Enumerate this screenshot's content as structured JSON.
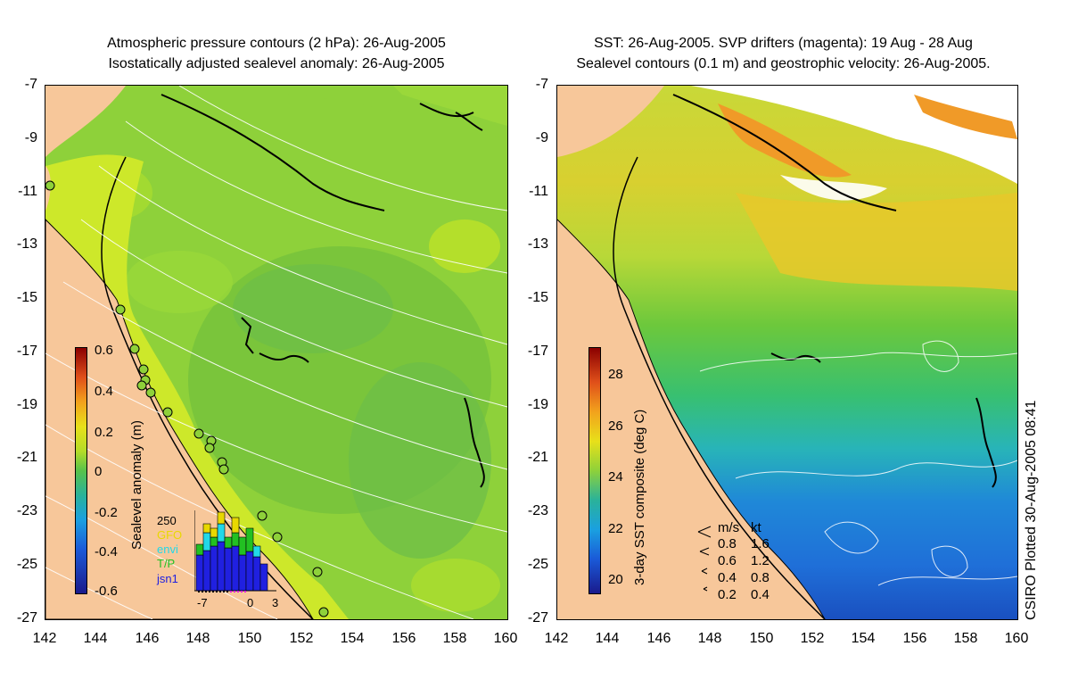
{
  "left_panel": {
    "title_line1": "Atmospheric pressure contours (2 hPa): 26-Aug-2005",
    "title_line2": "Isostatically adjusted sealevel anomaly: 26-Aug-2005",
    "colorbar_label": "Sealevel anomaly (m)",
    "colorbar_ticks": [
      "0.6",
      "0.4",
      "0.2",
      "0",
      "-0.2",
      "-0.4",
      "-0.6"
    ],
    "inset": {
      "ymax_label": "250",
      "legend": [
        {
          "label": "GFO",
          "color": "#e8d800"
        },
        {
          "label": "envi",
          "color": "#22d8e8"
        },
        {
          "label": "T/P",
          "color": "#22c022"
        },
        {
          "label": "jsn1",
          "color": "#2020e0"
        }
      ],
      "x_ticks": [
        "-7",
        "0",
        "3"
      ]
    }
  },
  "right_panel": {
    "title_line1": "SST: 26-Aug-2005. SVP drifters (magenta): 19 Aug - 28 Aug",
    "title_line2": "Sealevel contours (0.1 m) and geostrophic velocity: 26-Aug-2005.",
    "colorbar_label": "3-day SST composite (deg C)",
    "colorbar_ticks": [
      "28",
      "26",
      "24",
      "22",
      "20"
    ],
    "velocity_legend": {
      "header_ms": "m/s",
      "header_kt": "kt",
      "rows": [
        {
          "ms": "0.8",
          "kt": "1.6"
        },
        {
          "ms": "0.6",
          "kt": "1.2"
        },
        {
          "ms": "0.4",
          "kt": "0.8"
        },
        {
          "ms": "0.2",
          "kt": "0.4"
        }
      ]
    },
    "credit": "CSIRO Plotted 30-Aug-2005 08:41"
  },
  "axes": {
    "y_ticks": [
      "-7",
      "-9",
      "-11",
      "-13",
      "-15",
      "-17",
      "-19",
      "-21",
      "-23",
      "-25",
      "-27"
    ],
    "x_ticks": [
      "142",
      "144",
      "146",
      "148",
      "150",
      "152",
      "154",
      "156",
      "158",
      "160"
    ]
  },
  "colors": {
    "land": "#f7c79a",
    "ocean_green": "#8ed13a",
    "shelf_yellowgreen": "#cde82a",
    "sst_blue": "#1f6fd8",
    "sst_cyan": "#27c6c8",
    "sst_yellow": "#e8d22a"
  }
}
